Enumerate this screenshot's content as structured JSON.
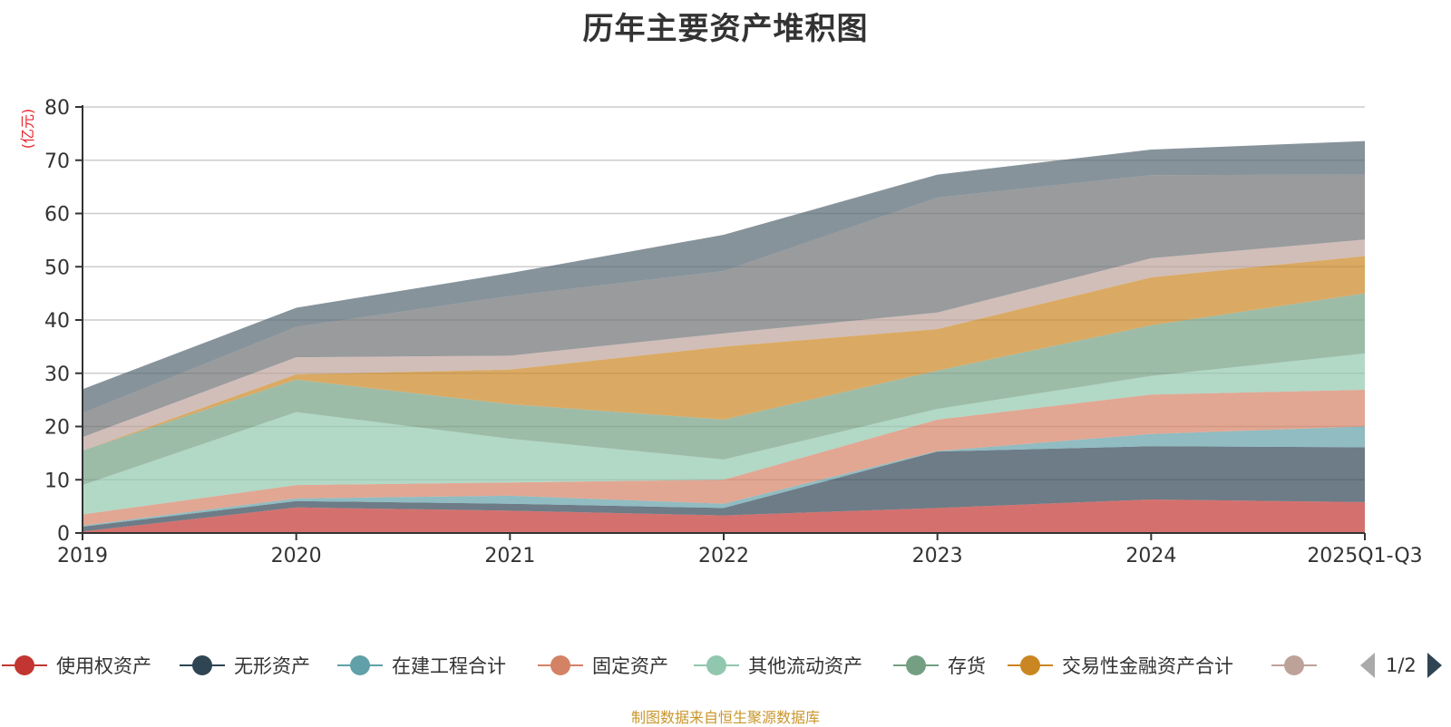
{
  "title": "历年主要资产堆积图",
  "source_note": "制图数据来自恒生聚源数据库",
  "legend": {
    "items": [
      {
        "label": "使用权资产",
        "color": "#c23531"
      },
      {
        "label": "无形资产",
        "color": "#2f4554"
      },
      {
        "label": "在建工程合计",
        "color": "#61a0a8"
      },
      {
        "label": "固定资产",
        "color": "#d48265"
      },
      {
        "label": "其他流动资产",
        "color": "#91c7ae"
      },
      {
        "label": "存货",
        "color": "#749f83"
      },
      {
        "label": "交易性金融资产合计",
        "color": "#ca8622"
      },
      {
        "label": "",
        "color": "#bda29a"
      }
    ],
    "page": "1/2"
  },
  "chart_data": {
    "type": "area",
    "stacked": true,
    "title": "历年主要资产堆积图",
    "xlabel": "",
    "ylabel": "(亿元)",
    "ylim": [
      0,
      80
    ],
    "yticks": [
      0,
      10,
      20,
      30,
      40,
      50,
      60,
      70,
      80
    ],
    "grid": true,
    "legend_position": "bottom",
    "categories": [
      "2019",
      "2020",
      "2021",
      "2022",
      "2023",
      "2024",
      "2025Q1-Q3"
    ],
    "series": [
      {
        "name": "使用权资产",
        "color": "#c23531",
        "values": [
          0.3,
          4.8,
          4.2,
          3.3,
          4.7,
          6.3,
          5.8
        ]
      },
      {
        "name": "无形资产",
        "color": "#2f4554",
        "values": [
          0.9,
          1.2,
          1.3,
          1.4,
          10.6,
          10.0,
          10.3
        ]
      },
      {
        "name": "在建工程合计",
        "color": "#61a0a8",
        "values": [
          0.2,
          0.5,
          1.5,
          0.8,
          0.1,
          2.3,
          3.9
        ]
      },
      {
        "name": "固定资产",
        "color": "#d48265",
        "values": [
          2.1,
          2.5,
          2.5,
          4.5,
          5.9,
          7.4,
          6.9
        ]
      },
      {
        "name": "其他流动资产",
        "color": "#91c7ae",
        "values": [
          5.5,
          13.7,
          8.2,
          3.8,
          2.0,
          3.5,
          6.8
        ]
      },
      {
        "name": "存货",
        "color": "#749f83",
        "values": [
          6.5,
          6.1,
          6.5,
          7.5,
          7.2,
          9.5,
          11.3
        ]
      },
      {
        "name": "交易性金融资产合计",
        "color": "#ca8622",
        "values": [
          0.0,
          1.0,
          6.5,
          13.7,
          7.8,
          9.0,
          7.0
        ]
      },
      {
        "name": "",
        "color": "#bda29a",
        "values": [
          2.5,
          3.2,
          2.6,
          2.5,
          3.1,
          3.6,
          3.1
        ]
      },
      {
        "name": "",
        "color": "#6e7074",
        "values": [
          4.5,
          5.7,
          11.2,
          11.7,
          21.6,
          15.6,
          12.2
        ]
      },
      {
        "name": "",
        "color": "#546570",
        "values": [
          4.5,
          3.6,
          4.3,
          6.8,
          4.3,
          4.8,
          6.3
        ]
      }
    ]
  }
}
